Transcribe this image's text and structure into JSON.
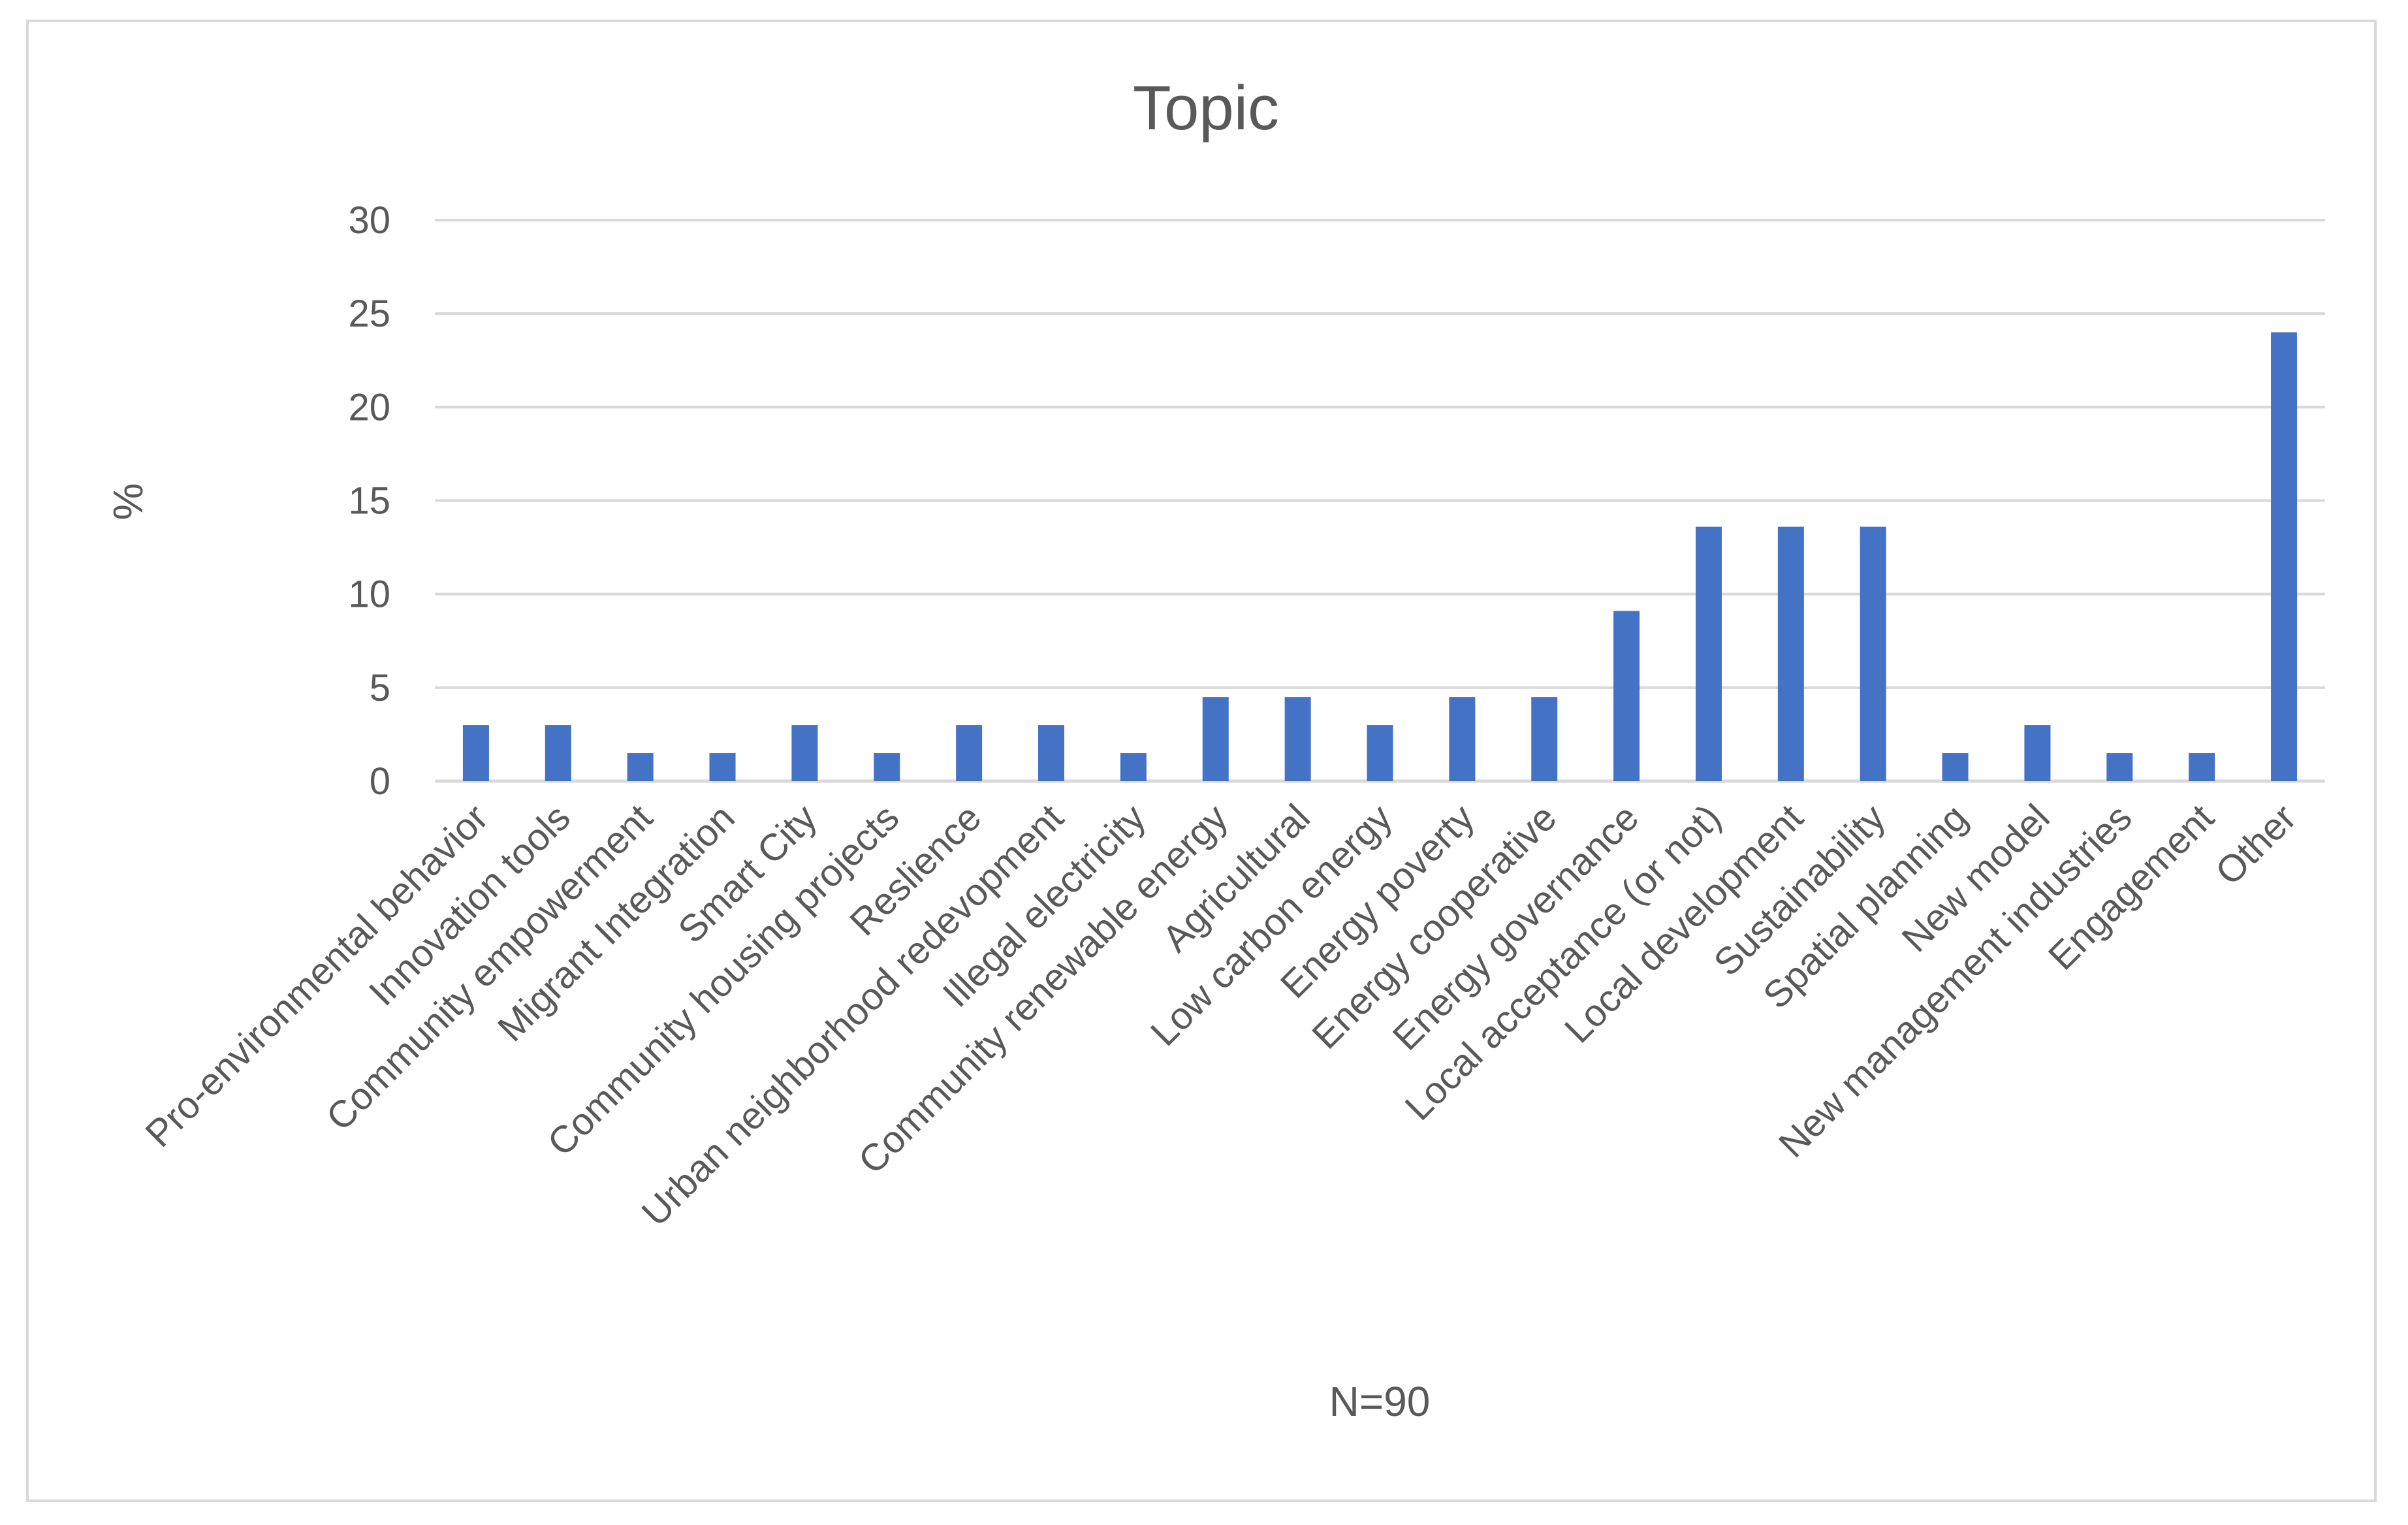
{
  "chart_data": {
    "type": "bar",
    "title": "Topic",
    "ylabel": "%",
    "xlabel": "N=90",
    "ylim": [
      0,
      30
    ],
    "yticks": [
      0,
      5,
      10,
      15,
      20,
      25,
      30
    ],
    "grid": true,
    "legend": "none",
    "bar_color": "#4472c4",
    "categories": [
      "Pro-environmental behavior",
      "Innovation tools",
      "Community empowerment",
      "Migrant Integration",
      "Smart City",
      "Community housing projects",
      "Reslience",
      "Urban neighborhood redevopment",
      "Illegal electricity",
      "Community renewable energy",
      "Agricultural",
      "Low carbon energy",
      "Energy poverty",
      "Energy cooperative",
      "Energy governance",
      "Local acceptance (or not)",
      "Local development",
      "Sustainability",
      "Spatial planning",
      "New model",
      "New management industries",
      "Engagement",
      "Other"
    ],
    "values": [
      3,
      3,
      1.5,
      1.5,
      3,
      1.5,
      3,
      3,
      1.5,
      4.5,
      4.5,
      3,
      4.5,
      4.5,
      9.1,
      13.6,
      13.6,
      13.6,
      1.5,
      3,
      1.5,
      1.5,
      24
    ]
  }
}
